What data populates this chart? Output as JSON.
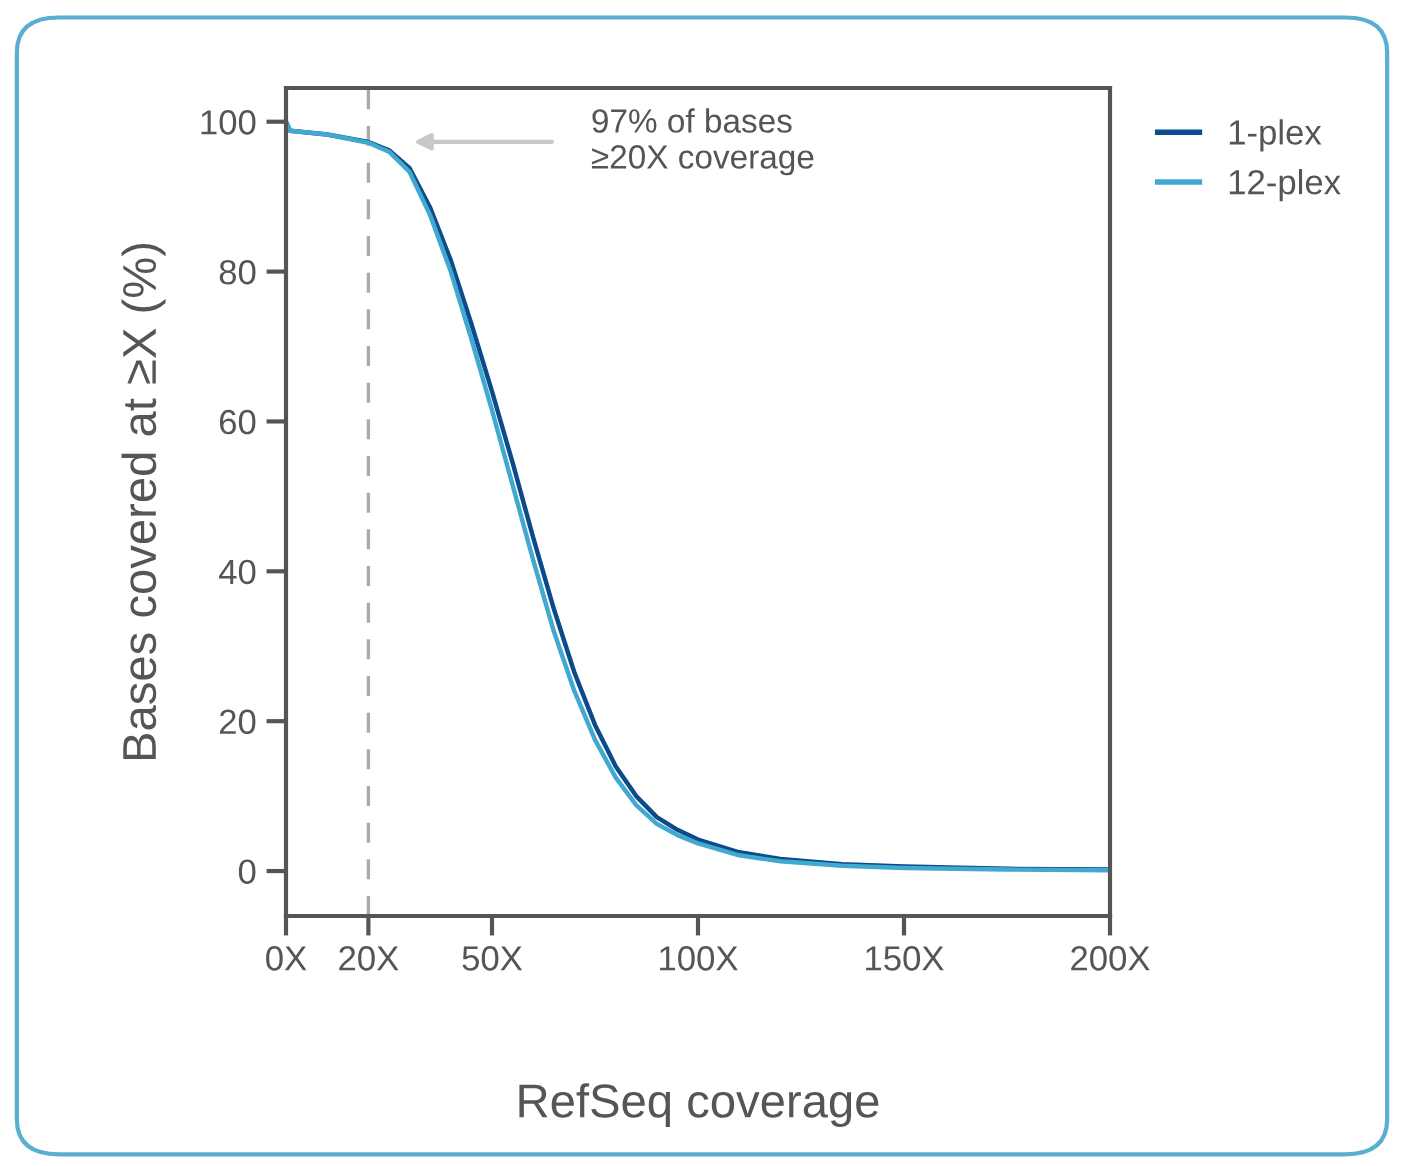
{
  "chart_data": {
    "type": "line",
    "xlabel": "RefSeq coverage",
    "ylabel": "Bases covered at ≥X (%)",
    "xlim": [
      0,
      200
    ],
    "xticks": [
      {
        "value": 0,
        "label": "0X"
      },
      {
        "value": 20,
        "label": "20X"
      },
      {
        "value": 50,
        "label": "50X"
      },
      {
        "value": 100,
        "label": "100X"
      },
      {
        "value": 150,
        "label": "150X"
      },
      {
        "value": 200,
        "label": "200X"
      }
    ],
    "ylim": [
      -6,
      104.5
    ],
    "yticks": [
      0,
      20,
      40,
      60,
      80,
      100
    ],
    "x": [
      0,
      1,
      10,
      20,
      25,
      30,
      35,
      40,
      45,
      50,
      55,
      60,
      65,
      70,
      75,
      80,
      85,
      90,
      95,
      100,
      110,
      120,
      135,
      150,
      175,
      200
    ],
    "series": [
      {
        "name": "1-plex",
        "color": "#0b4a8b",
        "values": [
          100,
          98.8,
          98.3,
          97.3,
          96.2,
          93.8,
          88.5,
          81.5,
          73,
          64,
          54.5,
          44.5,
          35,
          26.5,
          19.5,
          14,
          10,
          7.2,
          5.5,
          4.2,
          2.5,
          1.6,
          0.9,
          0.6,
          0.3,
          0.2
        ]
      },
      {
        "name": "12-plex",
        "color": "#41a8cf",
        "values": [
          100,
          98.8,
          98.3,
          97.2,
          96,
          93.3,
          87.5,
          80,
          71,
          61.5,
          51.5,
          41.5,
          32,
          24,
          17.5,
          12.5,
          8.8,
          6.3,
          4.8,
          3.7,
          2.1,
          1.3,
          0.7,
          0.4,
          0.2,
          0.1
        ]
      }
    ],
    "ref_lines": [
      {
        "axis": "x",
        "value": 20,
        "color": "#aaaaaa",
        "line_style": "dashed"
      }
    ],
    "annotations": [
      "97% of bases\n≥20X coverage"
    ],
    "legend": "top right",
    "grid": false,
    "marker": "none",
    "line_style": "solid"
  }
}
